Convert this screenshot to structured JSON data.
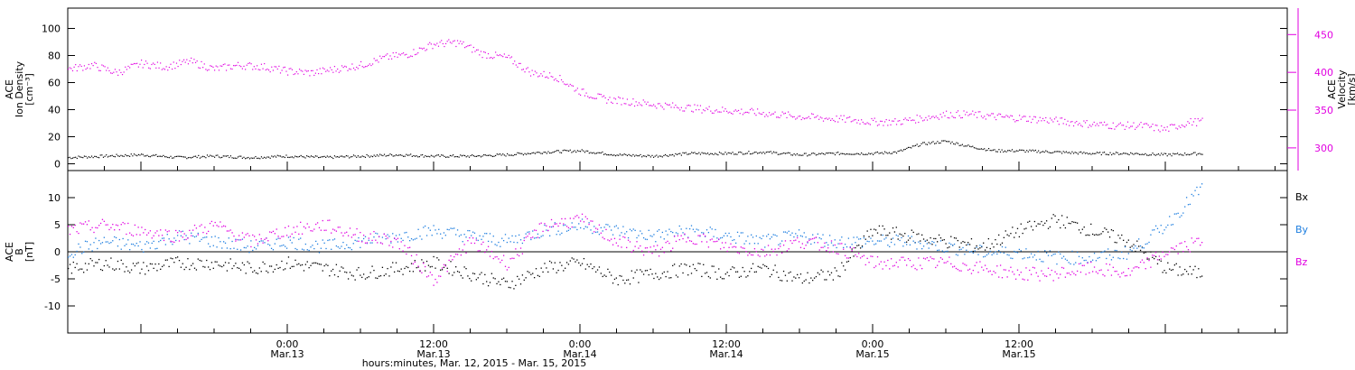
{
  "colors": {
    "black": "#000000",
    "magenta": "#e100e1",
    "blue": "#1f7fe0"
  },
  "chart_data": [
    {
      "type": "scatter",
      "panel": "top",
      "ylabel_left": [
        "ACE",
        "Ion Density",
        "[cm⁻³]"
      ],
      "ylabel_right": [
        "ACE",
        "Velocity",
        "[km/s]"
      ],
      "x_range_hours": [
        -18,
        82
      ],
      "ylim_left": [
        -5,
        115
      ],
      "yticks_left": [
        0,
        20,
        40,
        60,
        80,
        100
      ],
      "ylim_right": [
        270,
        485
      ],
      "yticks_right": [
        300,
        350,
        400,
        450
      ],
      "series": [
        {
          "color": "#000000",
          "axis": "left",
          "description": "Ion density",
          "x": [
            -18,
            -15,
            -12,
            -9,
            -6,
            -3,
            0,
            3,
            6,
            9,
            12,
            15,
            18,
            21,
            24,
            27,
            30,
            33,
            36,
            39,
            42,
            45,
            48,
            50,
            52,
            54,
            56,
            58,
            60,
            63,
            66,
            69,
            72,
            75
          ],
          "y": [
            5,
            6,
            7,
            5,
            6,
            5,
            6,
            5,
            6,
            7,
            6,
            6,
            7,
            9,
            10,
            7,
            6,
            8,
            8,
            9,
            7,
            8,
            8,
            9,
            15,
            17,
            13,
            10,
            10,
            9,
            8,
            8,
            7,
            8
          ]
        },
        {
          "color": "#e100e1",
          "axis": "right",
          "description": "Solar wind velocity",
          "x": [
            -18,
            -16,
            -14,
            -12,
            -10,
            -8,
            -6,
            -4,
            -2,
            0,
            2,
            4,
            6,
            8,
            10,
            12,
            14,
            16,
            18,
            20,
            22,
            24,
            26,
            28,
            30,
            32,
            34,
            36,
            38,
            40,
            42,
            44,
            46,
            48,
            50,
            52,
            54,
            56,
            58,
            60,
            62,
            64,
            66,
            68,
            70,
            72,
            74,
            75
          ],
          "y": [
            405,
            410,
            400,
            412,
            408,
            415,
            405,
            410,
            408,
            402,
            400,
            405,
            410,
            420,
            425,
            438,
            440,
            425,
            420,
            400,
            395,
            375,
            365,
            362,
            358,
            355,
            352,
            350,
            348,
            345,
            342,
            340,
            338,
            335,
            335,
            340,
            345,
            345,
            342,
            340,
            338,
            335,
            332,
            330,
            330,
            325,
            335,
            335
          ]
        }
      ]
    },
    {
      "type": "scatter",
      "panel": "bottom",
      "ylabel_left": [
        "ACE",
        "B",
        "[nT]"
      ],
      "x_range_hours": [
        -18,
        82
      ],
      "ylim": [
        -15,
        15
      ],
      "yticks": [
        -10,
        -5,
        0,
        5,
        10
      ],
      "legend": [
        "Bx",
        "By",
        "Bz"
      ],
      "legend_position": "right",
      "series": [
        {
          "name": "Bx",
          "color": "#000000",
          "x": [
            -18,
            -15,
            -12,
            -9,
            -6,
            -3,
            0,
            3,
            6,
            9,
            12,
            15,
            18,
            21,
            24,
            27,
            30,
            33,
            36,
            39,
            42,
            45,
            48,
            51,
            54,
            57,
            60,
            63,
            66,
            69,
            72,
            75
          ],
          "y": [
            -3,
            -2,
            -3,
            -2,
            -2,
            -3,
            -2,
            -3,
            -4,
            -3,
            -2,
            -4,
            -6,
            -3,
            -2,
            -5,
            -4,
            -3,
            -4,
            -3,
            -5,
            -4,
            4,
            3,
            2,
            1,
            4,
            6,
            4,
            2,
            -3,
            -4
          ]
        },
        {
          "name": "By",
          "color": "#1f7fe0",
          "x": [
            -18,
            -15,
            -12,
            -9,
            -6,
            -3,
            0,
            3,
            6,
            9,
            12,
            15,
            18,
            21,
            24,
            27,
            30,
            33,
            36,
            39,
            42,
            45,
            48,
            51,
            54,
            57,
            60,
            63,
            66,
            69,
            72,
            75
          ],
          "y": [
            0,
            2,
            1,
            3,
            2,
            1,
            2,
            1,
            2,
            3,
            4,
            3,
            2,
            4,
            5,
            4,
            3,
            4,
            3,
            2,
            3,
            2,
            2,
            2,
            1,
            0,
            0,
            -1,
            -1,
            0,
            5,
            12
          ]
        },
        {
          "name": "Bz",
          "color": "#e100e1",
          "x": [
            -18,
            -15,
            -12,
            -9,
            -6,
            -3,
            0,
            3,
            6,
            9,
            12,
            15,
            18,
            21,
            24,
            27,
            30,
            33,
            36,
            39,
            42,
            45,
            48,
            51,
            54,
            57,
            60,
            63,
            66,
            69,
            72,
            75
          ],
          "y": [
            4,
            5,
            4,
            3,
            5,
            2,
            4,
            5,
            3,
            2,
            -5,
            2,
            -2,
            5,
            6,
            2,
            0,
            3,
            1,
            0,
            2,
            1,
            -2,
            -2,
            -2,
            -3,
            -4,
            -4,
            -3,
            -4,
            0,
            2
          ]
        }
      ]
    }
  ],
  "x_axis": {
    "ticks": [
      {
        "hour": 0,
        "time": "0:00",
        "date": "Mar.13"
      },
      {
        "hour": 12,
        "time": "12:00",
        "date": "Mar.13"
      },
      {
        "hour": 24,
        "time": "0:00",
        "date": "Mar.14"
      },
      {
        "hour": 36,
        "time": "12:00",
        "date": "Mar.14"
      },
      {
        "hour": 48,
        "time": "0:00",
        "date": "Mar.15"
      },
      {
        "hour": 60,
        "time": "12:00",
        "date": "Mar.15"
      }
    ],
    "title": "hours:minutes, Mar. 12, 2015 - Mar. 15, 2015"
  }
}
